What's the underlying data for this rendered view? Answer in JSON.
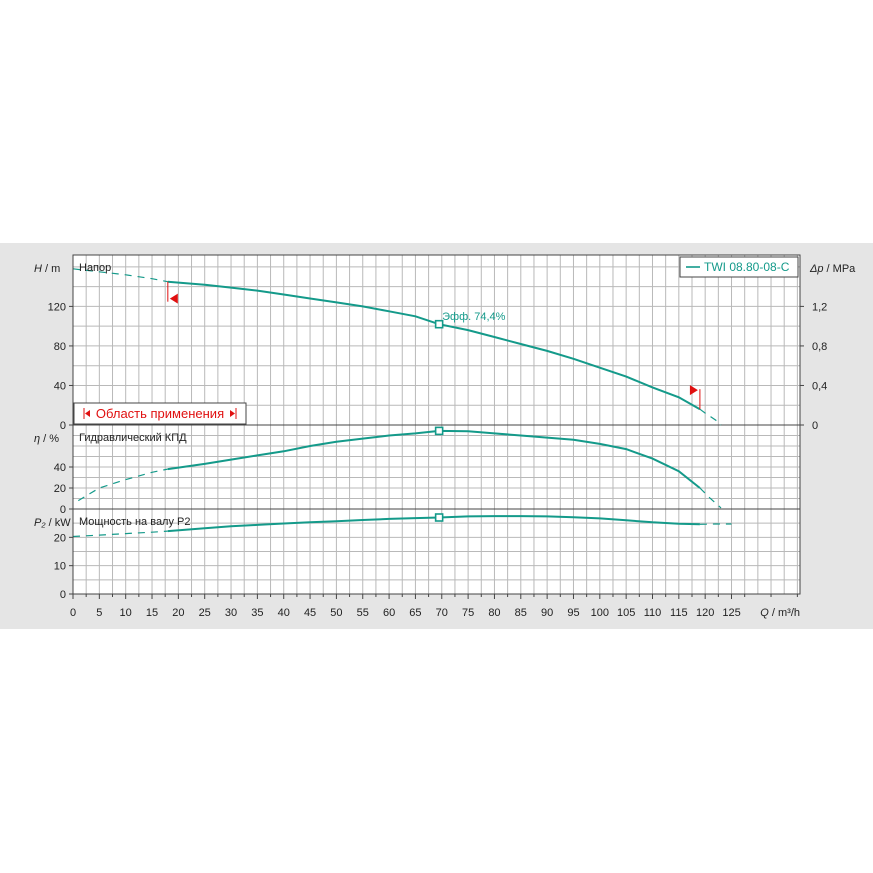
{
  "colors": {
    "curve": "#149a8a",
    "marker": "#e01010",
    "panel_bg": "#e5e5e5"
  },
  "chart_data": {
    "type": "line",
    "x": {
      "label_symbol": "Q",
      "label_unit": " / m³/h",
      "range": [
        0,
        138
      ],
      "ticks": [
        0,
        5,
        10,
        15,
        20,
        25,
        30,
        35,
        40,
        45,
        50,
        55,
        60,
        65,
        70,
        75,
        80,
        85,
        90,
        95,
        100,
        105,
        110,
        115,
        120,
        125
      ]
    },
    "legend": {
      "label": "TWI 08.80-08-C",
      "position": "top-right"
    },
    "operating_point_q": 69.5,
    "panels": [
      {
        "id": "head",
        "title": "Напор",
        "ylabel_symbol": "H",
        "ylabel_unit": " / m",
        "ylim": [
          0,
          172
        ],
        "yticks": [
          0,
          40,
          80,
          120
        ],
        "right_label_symbol": "Δp",
        "right_label_unit": " / MPa",
        "right_ylim": [
          0,
          1.72
        ],
        "right_ticks": [
          {
            "v": 0,
            "t": "0"
          },
          {
            "v": 0.4,
            "t": "0,4"
          },
          {
            "v": 0.8,
            "t": "0,8"
          },
          {
            "v": 1.2,
            "t": "1,2"
          }
        ],
        "efficiency_label": "Эфф.  74,4%",
        "range_box_label": "Область применения",
        "series": [
          {
            "name": "TWI 08.80-08-C",
            "style": "solid",
            "points": [
              [
                18,
                145
              ],
              [
                25,
                142
              ],
              [
                30,
                139
              ],
              [
                35,
                136
              ],
              [
                40,
                132
              ],
              [
                45,
                128
              ],
              [
                50,
                124
              ],
              [
                55,
                120
              ],
              [
                60,
                115
              ],
              [
                65,
                110
              ],
              [
                69.5,
                102
              ],
              [
                75,
                96
              ],
              [
                80,
                89
              ],
              [
                85,
                82
              ],
              [
                90,
                75
              ],
              [
                95,
                67
              ],
              [
                100,
                58
              ],
              [
                105,
                49
              ],
              [
                110,
                38
              ],
              [
                115,
                28
              ],
              [
                119,
                16
              ]
            ]
          },
          {
            "name": "",
            "style": "dashed",
            "points": [
              [
                0,
                158
              ],
              [
                5,
                155
              ],
              [
                10,
                152
              ],
              [
                15,
                148
              ],
              [
                18,
                145
              ]
            ]
          },
          {
            "name": "",
            "style": "dashed",
            "points": [
              [
                119,
                16
              ],
              [
                120,
                12
              ],
              [
                122,
                5
              ],
              [
                123,
                0
              ]
            ]
          }
        ]
      },
      {
        "id": "efficiency",
        "title": "Гидравлический КПД",
        "ylabel_symbol": "η",
        "ylabel_unit": " / %",
        "ylim": [
          0,
          80
        ],
        "yticks": [
          0,
          20,
          40
        ],
        "series": [
          {
            "name": "",
            "style": "dashed",
            "points": [
              [
                1,
                8
              ],
              [
                5,
                20
              ],
              [
                10,
                28
              ],
              [
                15,
                35
              ],
              [
                18,
                38
              ]
            ]
          },
          {
            "name": "",
            "style": "solid",
            "points": [
              [
                18,
                38
              ],
              [
                25,
                43
              ],
              [
                30,
                47
              ],
              [
                35,
                51
              ],
              [
                40,
                55
              ],
              [
                45,
                60
              ],
              [
                50,
                64
              ],
              [
                55,
                67
              ],
              [
                60,
                70
              ],
              [
                65,
                72
              ],
              [
                69.5,
                74.4
              ],
              [
                75,
                74
              ],
              [
                80,
                72
              ],
              [
                85,
                70
              ],
              [
                90,
                68
              ],
              [
                95,
                66
              ],
              [
                100,
                62
              ],
              [
                105,
                57
              ],
              [
                110,
                48
              ],
              [
                115,
                36
              ],
              [
                119,
                20
              ]
            ]
          },
          {
            "name": "",
            "style": "dashed",
            "points": [
              [
                119,
                20
              ],
              [
                121,
                10
              ],
              [
                123,
                1
              ]
            ]
          }
        ]
      },
      {
        "id": "power",
        "title": "Мощность на валу P2",
        "ylabel_symbol": "P₂",
        "ylabel_unit": " / kW",
        "ylim": [
          0,
          30
        ],
        "yticks": [
          0,
          10,
          20
        ],
        "series": [
          {
            "name": "",
            "style": "dashed",
            "points": [
              [
                0,
                20.3
              ],
              [
                5,
                20.8
              ],
              [
                10,
                21.3
              ],
              [
                15,
                21.8
              ],
              [
                18,
                22.2
              ]
            ]
          },
          {
            "name": "",
            "style": "solid",
            "points": [
              [
                18,
                22.2
              ],
              [
                25,
                23.2
              ],
              [
                30,
                23.9
              ],
              [
                35,
                24.4
              ],
              [
                40,
                24.9
              ],
              [
                45,
                25.3
              ],
              [
                50,
                25.7
              ],
              [
                55,
                26.1
              ],
              [
                60,
                26.5
              ],
              [
                65,
                26.8
              ],
              [
                69.5,
                27.0
              ],
              [
                75,
                27.4
              ],
              [
                80,
                27.5
              ],
              [
                85,
                27.5
              ],
              [
                90,
                27.4
              ],
              [
                95,
                27.1
              ],
              [
                100,
                26.7
              ],
              [
                105,
                26.0
              ],
              [
                110,
                25.3
              ],
              [
                115,
                24.8
              ],
              [
                119,
                24.6
              ]
            ]
          },
          {
            "name": "",
            "style": "dashed",
            "points": [
              [
                119,
                24.6
              ],
              [
                122,
                24.7
              ],
              [
                125,
                24.7
              ]
            ]
          }
        ]
      }
    ]
  }
}
